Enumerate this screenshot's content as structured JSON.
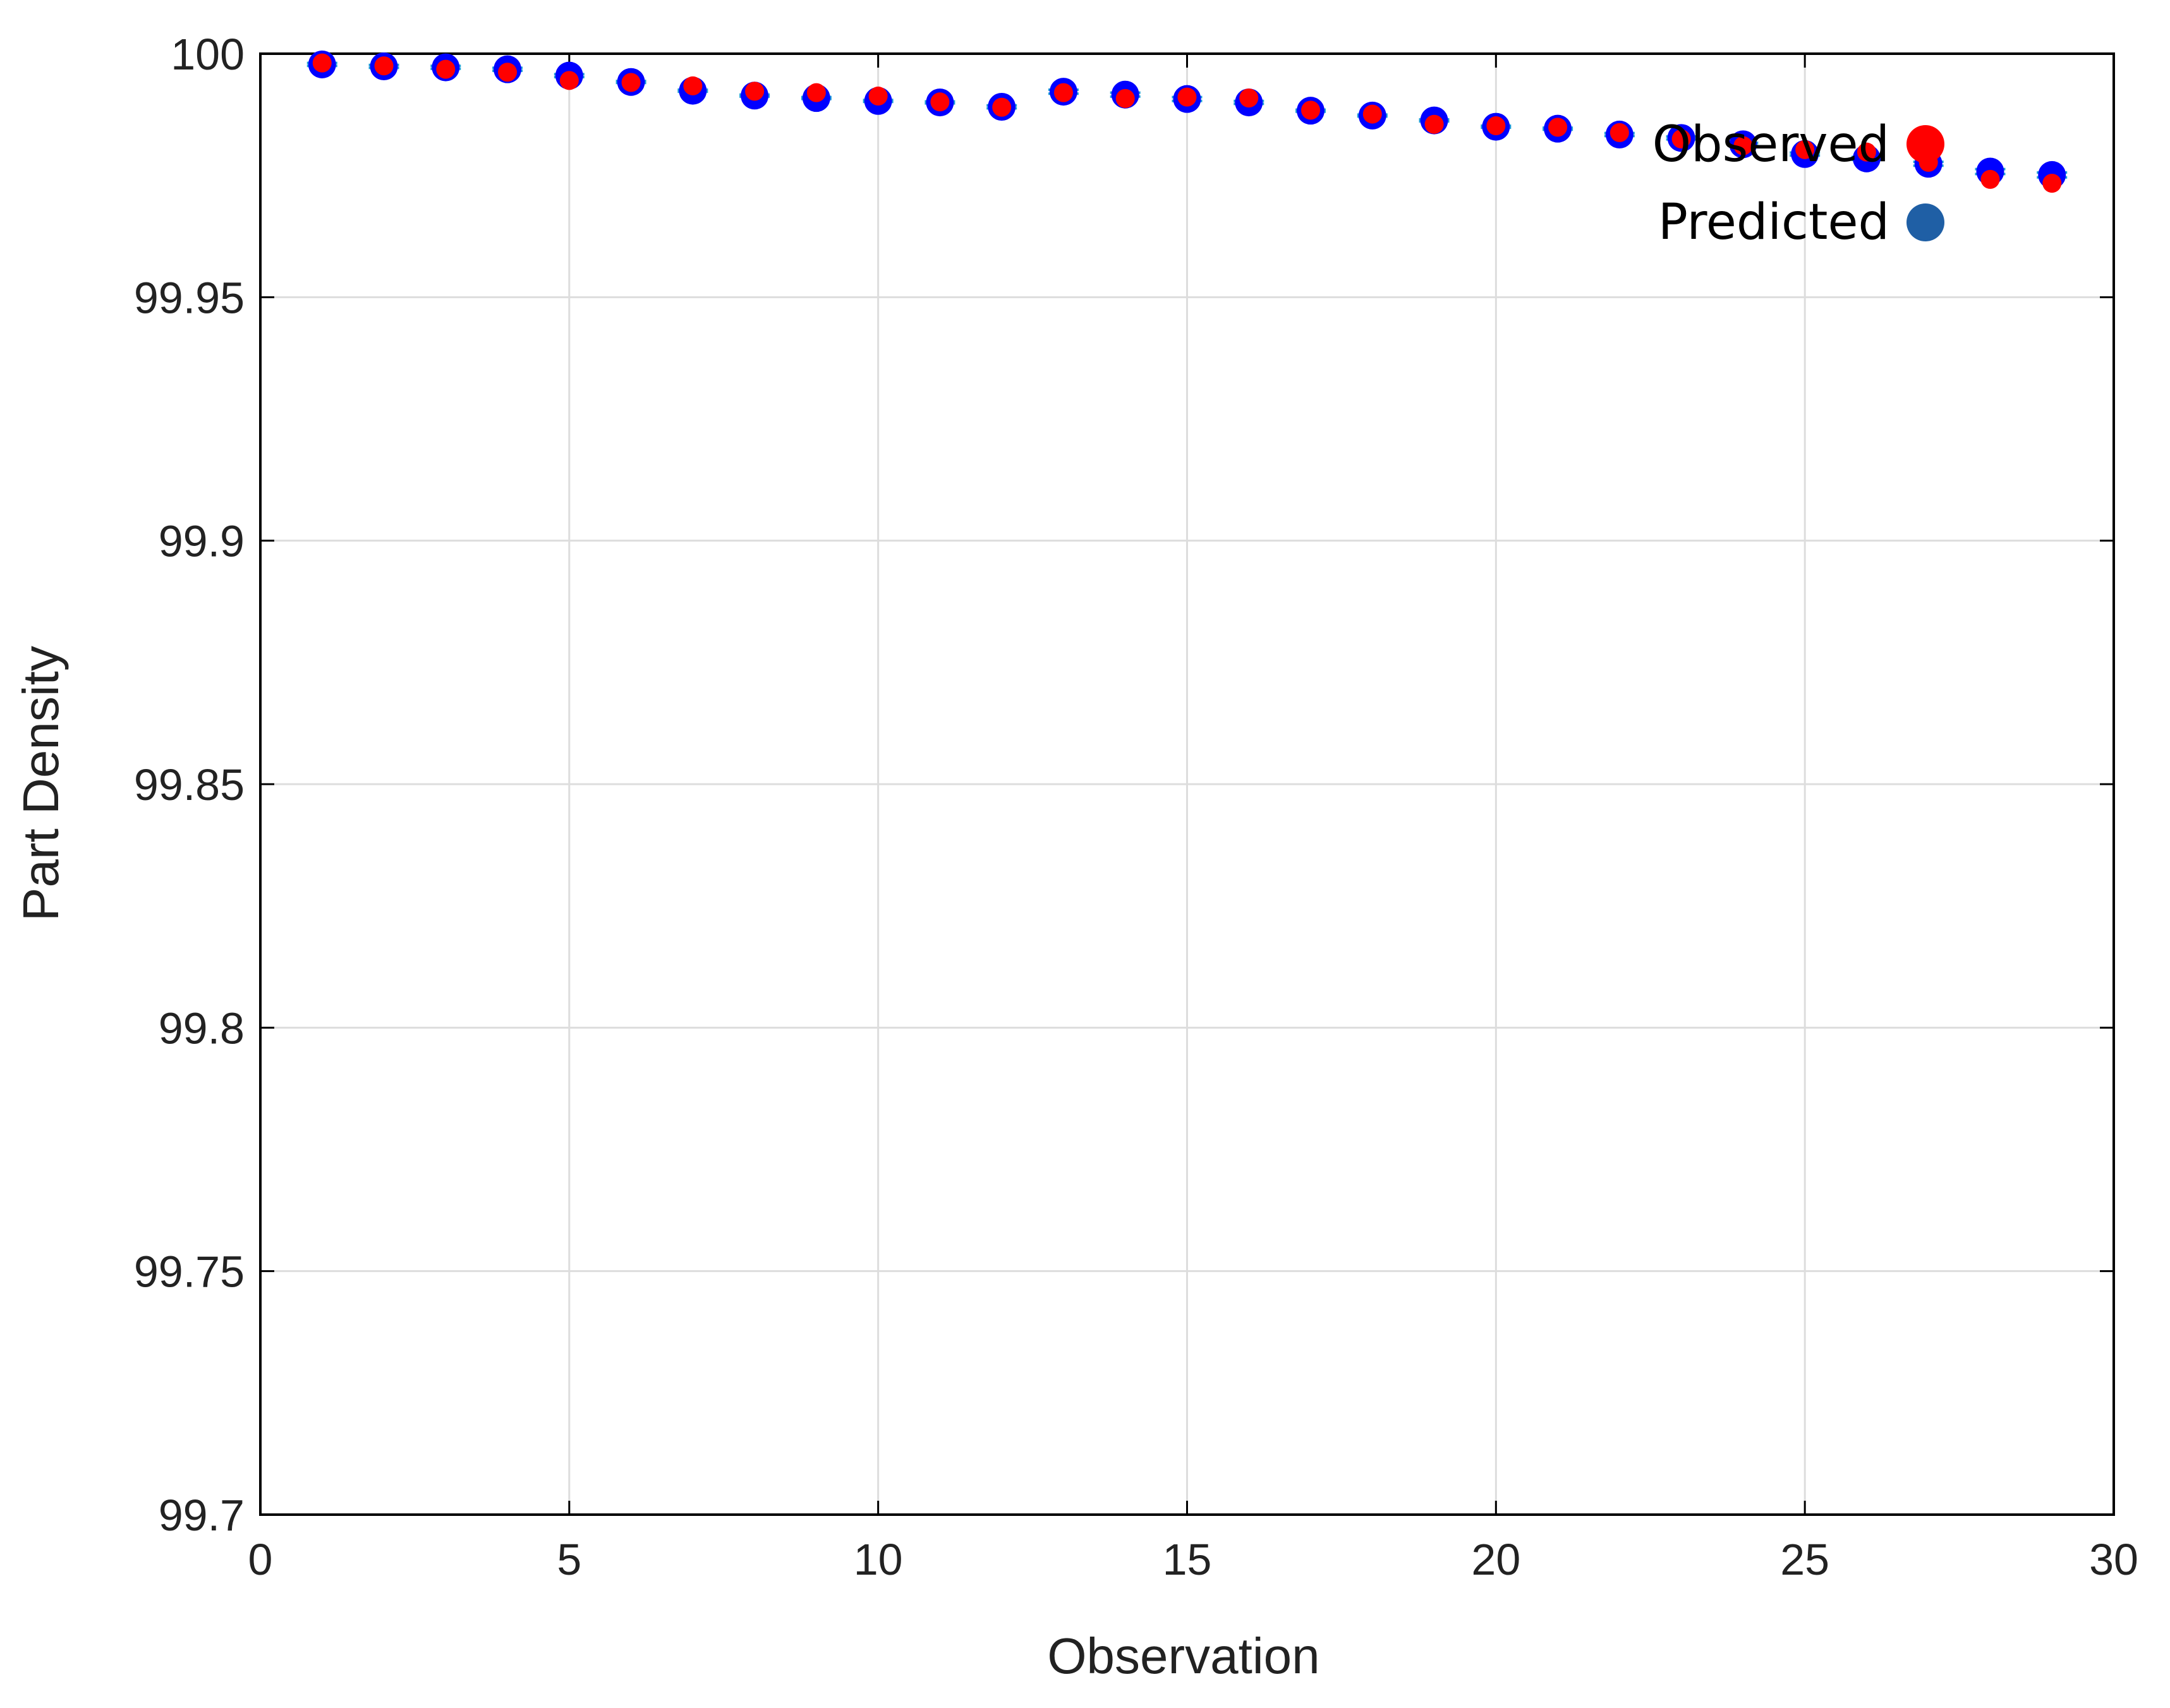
{
  "chart_data": {
    "type": "scatter",
    "title": "",
    "xlabel": "Observation",
    "ylabel": "Part Density",
    "xlim": [
      0,
      30
    ],
    "ylim": [
      99.7,
      100
    ],
    "xticks": [
      0,
      5,
      10,
      15,
      20,
      25,
      30
    ],
    "xtick_labels": [
      "0",
      "5",
      "10",
      "15",
      "20",
      "25",
      "30"
    ],
    "yticks": [
      99.7,
      99.75,
      99.8,
      99.85,
      99.9,
      99.95,
      100
    ],
    "ytick_labels": [
      "99.7",
      "99.75",
      "99.8",
      "99.85",
      "99.9",
      "99.95",
      "100"
    ],
    "grid": true,
    "legend_position": "top-right",
    "colors": {
      "observed": "#ff0000",
      "predicted": "#0000ff",
      "predicted_legend": "#1f5fa5",
      "error_bar": "#1ea0d8",
      "grid": "#dddddd",
      "axis": "#000000"
    },
    "x": [
      1,
      2,
      3,
      4,
      5,
      6,
      7,
      8,
      9,
      10,
      11,
      12,
      13,
      14,
      15,
      16,
      17,
      18,
      19,
      20,
      21,
      22,
      23,
      24,
      25,
      26,
      27,
      28,
      29
    ],
    "series": [
      {
        "name": "Observed",
        "values": [
          99.9981,
          99.9975,
          99.9968,
          99.9962,
          99.9945,
          99.9941,
          99.9934,
          99.9923,
          99.992,
          99.9913,
          99.9901,
          99.989,
          99.992,
          99.9908,
          99.9911,
          99.9909,
          99.9884,
          99.9876,
          99.9855,
          99.9852,
          99.9849,
          99.9838,
          99.9825,
          99.9811,
          99.9803,
          99.9798,
          99.9777,
          99.9742,
          99.9734
        ]
      },
      {
        "name": "Predicted",
        "values": [
          99.9978,
          99.9974,
          99.9972,
          99.9968,
          99.9955,
          99.9942,
          99.9924,
          99.9914,
          99.9909,
          99.9903,
          99.99,
          99.9891,
          99.9922,
          99.9916,
          99.9907,
          99.99,
          99.9883,
          99.9873,
          99.9863,
          99.985,
          99.9846,
          99.9834,
          99.9827,
          99.9814,
          99.9794,
          99.9785,
          99.9774,
          99.9758,
          99.9751
        ],
        "error": [
          0.0003,
          0.0003,
          0.0003,
          0.0003,
          0.0003,
          0.0002,
          0.0002,
          0.0002,
          0.0002,
          0.0002,
          0.0002,
          0.0003,
          0.0004,
          0.0004,
          0.0004,
          0.0003,
          0.0002,
          0.0002,
          0.0002,
          0.0002,
          0.0002,
          0.0003,
          0.0003,
          0.0003,
          0.0003,
          0.0003,
          0.0004,
          0.0005,
          0.0005
        ]
      }
    ]
  }
}
